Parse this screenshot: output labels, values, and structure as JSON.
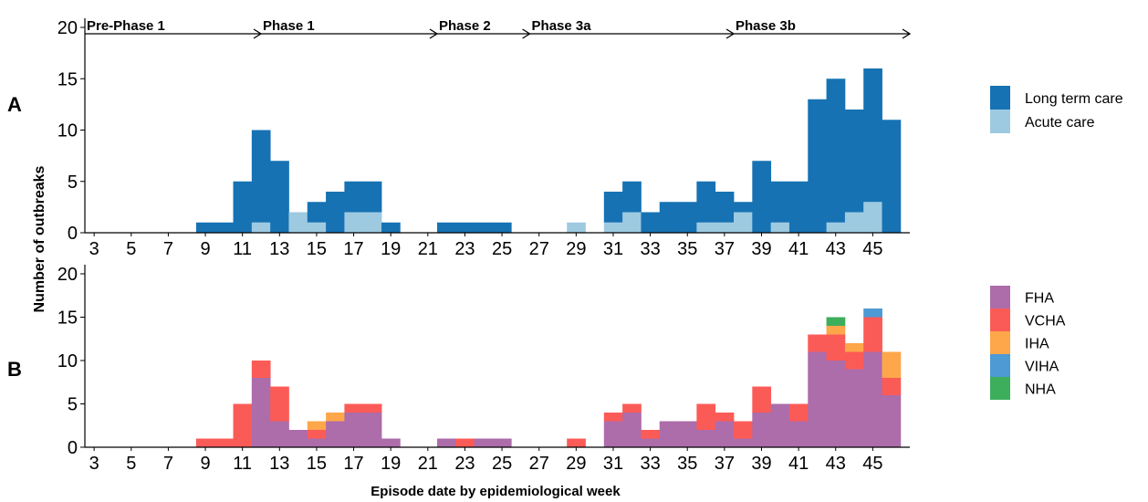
{
  "xlabel": "Episode date by epidemiological week",
  "ylabel": "Number of outbreaks",
  "x_ticks": [
    3,
    5,
    7,
    9,
    11,
    13,
    15,
    17,
    19,
    21,
    23,
    25,
    27,
    29,
    31,
    33,
    35,
    37,
    39,
    41,
    43,
    45
  ],
  "y_ticks": [
    0,
    5,
    10,
    15,
    20
  ],
  "phases": [
    {
      "label": "Pre-Phase 1",
      "start_week": 2.5,
      "end_week": 12
    },
    {
      "label": "Phase 1",
      "start_week": 12,
      "end_week": 21.5
    },
    {
      "label": "Phase 2",
      "start_week": 21.5,
      "end_week": 26.5
    },
    {
      "label": "Phase 3a",
      "start_week": 26.5,
      "end_week": 37.5
    },
    {
      "label": "Phase 3b",
      "start_week": 37.5,
      "end_week": 47
    }
  ],
  "chart_data": [
    {
      "type": "bar",
      "panel_label": "A",
      "stacked": true,
      "xlabel": "",
      "ylabel": "Number of outbreaks",
      "ylim": [
        0,
        20
      ],
      "x": [
        3,
        4,
        5,
        6,
        7,
        8,
        9,
        10,
        11,
        12,
        13,
        14,
        15,
        16,
        17,
        18,
        19,
        20,
        21,
        22,
        23,
        24,
        25,
        26,
        27,
        28,
        29,
        30,
        31,
        32,
        33,
        34,
        35,
        36,
        37,
        38,
        39,
        40,
        41,
        42,
        43,
        44,
        45,
        46
      ],
      "series": [
        {
          "name": "Acute care",
          "color": "#9ecae1",
          "values": [
            0,
            0,
            0,
            0,
            0,
            0,
            0,
            0,
            0,
            1,
            0,
            2,
            1,
            0,
            2,
            2,
            0,
            0,
            0,
            0,
            0,
            0,
            0,
            0,
            0,
            0,
            1,
            0,
            1,
            2,
            0,
            0,
            0,
            1,
            1,
            2,
            0,
            1,
            0,
            0,
            1,
            2,
            3,
            0
          ]
        },
        {
          "name": "Long term care",
          "color": "#1672b3",
          "values": [
            0,
            0,
            0,
            0,
            0,
            0,
            1,
            1,
            5,
            9,
            7,
            0,
            2,
            4,
            3,
            3,
            1,
            0,
            0,
            1,
            1,
            1,
            1,
            0,
            0,
            0,
            0,
            0,
            3,
            3,
            2,
            3,
            3,
            4,
            3,
            1,
            7,
            4,
            5,
            13,
            14,
            10,
            13,
            11
          ]
        }
      ]
    },
    {
      "type": "bar",
      "panel_label": "B",
      "stacked": true,
      "xlabel": "Episode date by epidemiological week",
      "ylabel": "Number of outbreaks",
      "ylim": [
        0,
        20
      ],
      "x": [
        3,
        4,
        5,
        6,
        7,
        8,
        9,
        10,
        11,
        12,
        13,
        14,
        15,
        16,
        17,
        18,
        19,
        20,
        21,
        22,
        23,
        24,
        25,
        26,
        27,
        28,
        29,
        30,
        31,
        32,
        33,
        34,
        35,
        36,
        37,
        38,
        39,
        40,
        41,
        42,
        43,
        44,
        45,
        46
      ],
      "series": [
        {
          "name": "FHA",
          "color": "#ad6caa",
          "values": [
            0,
            0,
            0,
            0,
            0,
            0,
            0,
            0,
            0,
            8,
            3,
            2,
            1,
            3,
            4,
            4,
            1,
            0,
            0,
            1,
            0,
            1,
            1,
            0,
            0,
            0,
            0,
            0,
            3,
            4,
            1,
            3,
            3,
            2,
            3,
            1,
            4,
            5,
            3,
            11,
            10,
            9,
            11,
            6
          ]
        },
        {
          "name": "VCHA",
          "color": "#fb5b57",
          "values": [
            0,
            0,
            0,
            0,
            0,
            0,
            1,
            1,
            5,
            2,
            4,
            0,
            1,
            0,
            1,
            1,
            0,
            0,
            0,
            0,
            1,
            0,
            0,
            0,
            0,
            0,
            1,
            0,
            1,
            1,
            1,
            0,
            0,
            3,
            1,
            2,
            3,
            0,
            2,
            2,
            3,
            2,
            4,
            2
          ]
        },
        {
          "name": "IHA",
          "color": "#fda74a",
          "values": [
            0,
            0,
            0,
            0,
            0,
            0,
            0,
            0,
            0,
            0,
            0,
            0,
            1,
            1,
            0,
            0,
            0,
            0,
            0,
            0,
            0,
            0,
            0,
            0,
            0,
            0,
            0,
            0,
            0,
            0,
            0,
            0,
            0,
            0,
            0,
            0,
            0,
            0,
            0,
            0,
            1,
            1,
            0,
            3
          ]
        },
        {
          "name": "VIHA",
          "color": "#4d9ad5",
          "values": [
            0,
            0,
            0,
            0,
            0,
            0,
            0,
            0,
            0,
            0,
            0,
            0,
            0,
            0,
            0,
            0,
            0,
            0,
            0,
            0,
            0,
            0,
            0,
            0,
            0,
            0,
            0,
            0,
            0,
            0,
            0,
            0,
            0,
            0,
            0,
            0,
            0,
            0,
            0,
            0,
            0,
            0,
            1,
            0
          ]
        },
        {
          "name": "NHA",
          "color": "#3dae5c",
          "values": [
            0,
            0,
            0,
            0,
            0,
            0,
            0,
            0,
            0,
            0,
            0,
            0,
            0,
            0,
            0,
            0,
            0,
            0,
            0,
            0,
            0,
            0,
            0,
            0,
            0,
            0,
            0,
            0,
            0,
            0,
            0,
            0,
            0,
            0,
            0,
            0,
            0,
            0,
            0,
            0,
            1,
            0,
            0,
            0
          ]
        }
      ]
    }
  ]
}
